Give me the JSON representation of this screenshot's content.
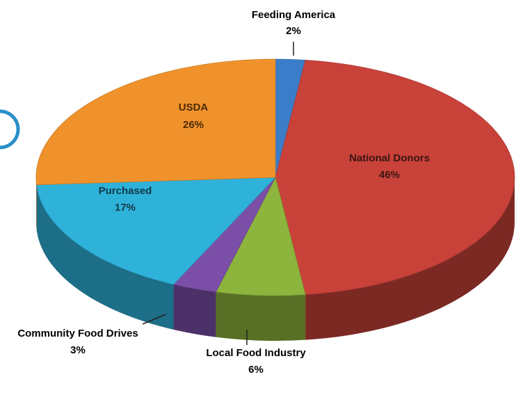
{
  "chart_data": {
    "type": "pie3d",
    "categories": [
      "Feeding America",
      "National Donors",
      "Local Food Industry",
      "Community Food Drives",
      "Purchased",
      "USDA"
    ],
    "values": [
      2,
      46,
      6,
      3,
      17,
      26
    ],
    "value_labels": [
      "2%",
      "46%",
      "6%",
      "3%",
      "17%",
      "26%"
    ],
    "colors": [
      "#3b7dc9",
      "#c8423a",
      "#8db43c",
      "#7b4fa8",
      "#2fb2da",
      "#f0922b"
    ]
  }
}
